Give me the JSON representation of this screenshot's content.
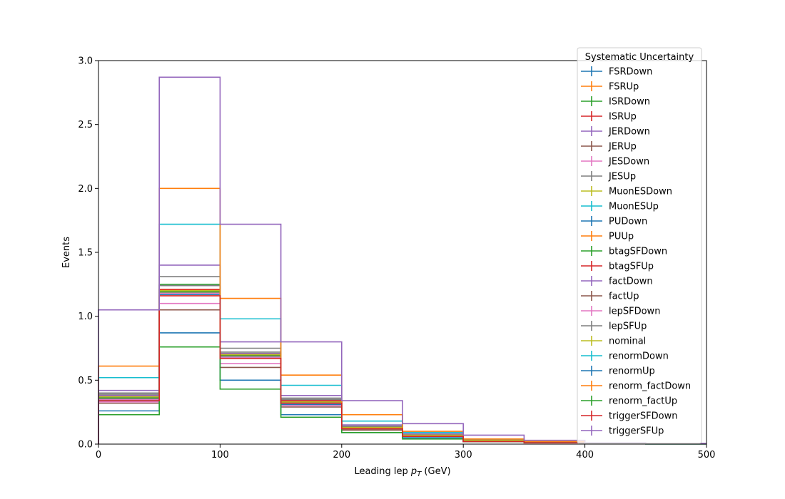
{
  "chart_data": {
    "type": "histogram-step",
    "xlabel_prefix": "Leading lep ",
    "xlabel_symbol": "p",
    "xlabel_sub": "T",
    "xlabel_suffix": " (GeV)",
    "ylabel": "Events",
    "xlim": [
      0,
      500
    ],
    "ylim": [
      0,
      3.0
    ],
    "xticks": [
      "0",
      "100",
      "200",
      "300",
      "400",
      "500"
    ],
    "yticks": [
      "0.0",
      "0.5",
      "1.0",
      "1.5",
      "2.0",
      "2.5",
      "3.0"
    ],
    "bin_edges": [
      0,
      50,
      100,
      150,
      200,
      250,
      300,
      350,
      400,
      450,
      500
    ],
    "legend_title": "Systematic Uncertainty",
    "legend_position": "top-right",
    "series": [
      {
        "name": "FSRDown",
        "color": "#1f77b4",
        "values": [
          0.34,
          1.17,
          0.68,
          0.31,
          0.12,
          0.06,
          0.02,
          0.01,
          0.005,
          0.002
        ]
      },
      {
        "name": "FSRUp",
        "color": "#ff7f0e",
        "values": [
          0.37,
          1.21,
          0.7,
          0.33,
          0.13,
          0.07,
          0.03,
          0.01,
          0.005,
          0.002
        ]
      },
      {
        "name": "ISRDown",
        "color": "#2ca02c",
        "values": [
          0.38,
          1.25,
          0.71,
          0.34,
          0.13,
          0.07,
          0.03,
          0.01,
          0.005,
          0.002
        ]
      },
      {
        "name": "ISRUp",
        "color": "#d62728",
        "values": [
          0.36,
          1.19,
          0.69,
          0.32,
          0.12,
          0.06,
          0.02,
          0.01,
          0.005,
          0.002
        ]
      },
      {
        "name": "JERDown",
        "color": "#9467bd",
        "values": [
          0.38,
          1.24,
          0.71,
          0.34,
          0.13,
          0.07,
          0.03,
          0.01,
          0.005,
          0.002
        ]
      },
      {
        "name": "JERUp",
        "color": "#8c564b",
        "values": [
          0.36,
          1.19,
          0.69,
          0.33,
          0.12,
          0.06,
          0.02,
          0.01,
          0.005,
          0.002
        ]
      },
      {
        "name": "JESDown",
        "color": "#e377c2",
        "values": [
          0.35,
          1.18,
          0.68,
          0.32,
          0.12,
          0.06,
          0.02,
          0.01,
          0.005,
          0.002
        ]
      },
      {
        "name": "JESUp",
        "color": "#7f7f7f",
        "values": [
          0.39,
          1.24,
          0.72,
          0.35,
          0.14,
          0.07,
          0.03,
          0.01,
          0.005,
          0.002
        ]
      },
      {
        "name": "MuonESDown",
        "color": "#bcbd22",
        "values": [
          0.37,
          1.2,
          0.7,
          0.33,
          0.13,
          0.07,
          0.03,
          0.01,
          0.005,
          0.002
        ]
      },
      {
        "name": "MuonESUp",
        "color": "#17becf",
        "values": [
          0.37,
          1.2,
          0.7,
          0.33,
          0.13,
          0.07,
          0.03,
          0.01,
          0.005,
          0.002
        ]
      },
      {
        "name": "PUDown",
        "color": "#1f77b4",
        "values": [
          0.36,
          1.2,
          0.69,
          0.33,
          0.13,
          0.06,
          0.03,
          0.01,
          0.005,
          0.002
        ]
      },
      {
        "name": "PUUp",
        "color": "#ff7f0e",
        "values": [
          0.37,
          1.21,
          0.7,
          0.33,
          0.13,
          0.07,
          0.03,
          0.01,
          0.005,
          0.002
        ]
      },
      {
        "name": "btagSFDown",
        "color": "#2ca02c",
        "values": [
          0.36,
          1.19,
          0.69,
          0.33,
          0.12,
          0.06,
          0.02,
          0.01,
          0.005,
          0.002
        ]
      },
      {
        "name": "btagSFUp",
        "color": "#d62728",
        "values": [
          0.37,
          1.21,
          0.7,
          0.34,
          0.13,
          0.07,
          0.03,
          0.01,
          0.005,
          0.002
        ]
      },
      {
        "name": "factDown",
        "color": "#9467bd",
        "values": [
          0.42,
          1.4,
          0.8,
          0.38,
          0.15,
          0.08,
          0.03,
          0.01,
          0.005,
          0.002
        ]
      },
      {
        "name": "factUp",
        "color": "#8c564b",
        "values": [
          0.32,
          1.05,
          0.6,
          0.29,
          0.11,
          0.06,
          0.02,
          0.01,
          0.004,
          0.002
        ]
      },
      {
        "name": "lepSFDown",
        "color": "#e377c2",
        "values": [
          0.33,
          1.1,
          0.63,
          0.3,
          0.12,
          0.06,
          0.02,
          0.01,
          0.004,
          0.002
        ]
      },
      {
        "name": "lepSFUp",
        "color": "#7f7f7f",
        "values": [
          0.4,
          1.31,
          0.75,
          0.36,
          0.14,
          0.07,
          0.03,
          0.01,
          0.005,
          0.002
        ]
      },
      {
        "name": "nominal",
        "color": "#bcbd22",
        "values": [
          0.37,
          1.2,
          0.7,
          0.33,
          0.13,
          0.07,
          0.03,
          0.01,
          0.005,
          0.002
        ]
      },
      {
        "name": "renormDown",
        "color": "#17becf",
        "values": [
          0.52,
          1.72,
          0.98,
          0.46,
          0.18,
          0.09,
          0.04,
          0.02,
          0.007,
          0.003
        ]
      },
      {
        "name": "renormUp",
        "color": "#1f77b4",
        "values": [
          0.26,
          0.87,
          0.5,
          0.23,
          0.09,
          0.05,
          0.02,
          0.01,
          0.004,
          0.001
        ]
      },
      {
        "name": "renorm_factDown",
        "color": "#ff7f0e",
        "values": [
          0.61,
          2.0,
          1.14,
          0.54,
          0.23,
          0.1,
          0.04,
          0.02,
          0.008,
          0.003
        ]
      },
      {
        "name": "renorm_factUp",
        "color": "#2ca02c",
        "values": [
          0.23,
          0.76,
          0.43,
          0.21,
          0.09,
          0.04,
          0.02,
          0.01,
          0.003,
          0.001
        ]
      },
      {
        "name": "triggerSFDown",
        "color": "#d62728",
        "values": [
          0.34,
          1.16,
          0.67,
          0.32,
          0.12,
          0.06,
          0.02,
          0.01,
          0.005,
          0.002
        ]
      },
      {
        "name": "triggerSFUp",
        "color": "#9467bd",
        "values": [
          1.05,
          2.87,
          1.72,
          0.8,
          0.34,
          0.16,
          0.07,
          0.03,
          0.01,
          0.005
        ]
      }
    ]
  }
}
